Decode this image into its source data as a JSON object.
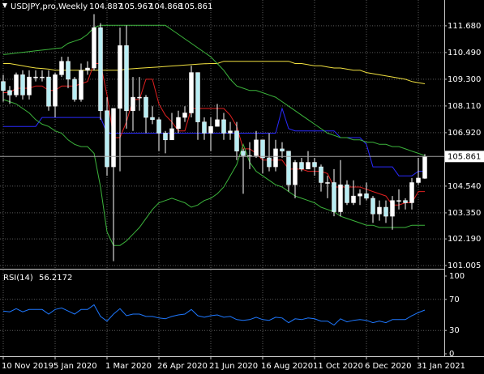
{
  "chart_data": {
    "type": "candlestick",
    "title": "USDJPY,pro,Weekly",
    "categories": [
      "10 Nov 2019",
      null,
      null,
      null,
      null,
      null,
      null,
      null,
      "5 Jan 2020",
      null,
      null,
      null,
      null,
      null,
      null,
      null,
      "1 Mar 2020",
      null,
      null,
      null,
      null,
      null,
      null,
      null,
      "26 Apr 2020",
      null,
      null,
      null,
      null,
      null,
      null,
      null,
      "21 Jun 2020",
      null,
      null,
      null,
      null,
      null,
      null,
      null,
      "16 Aug 2020",
      null,
      null,
      null,
      null,
      null,
      null,
      null,
      "11 Oct 2020",
      null,
      null,
      null,
      null,
      null,
      null,
      null,
      "6 Dec 2020",
      null,
      null,
      null,
      null,
      null,
      null,
      null,
      "31 Jan 2021",
      null
    ],
    "open": [
      109.2,
      108.8,
      108.6,
      109.5,
      108.6,
      109.4,
      109.4,
      109.4,
      108.1,
      109.5,
      110.1,
      109.3,
      108.4,
      109.7,
      109.8,
      111.6,
      107.9,
      105.4,
      108.0,
      110.8,
      107.9,
      108.5,
      108.5,
      107.6,
      107.5,
      106.9,
      106.6,
      107.1,
      107.6,
      107.8,
      109.6,
      107.4,
      106.9,
      107.2,
      107.5,
      106.9,
      107.0,
      106.1,
      105.9,
      105.9,
      106.6,
      105.8,
      105.4,
      106.2,
      106.1,
      104.6,
      105.6,
      105.3,
      105.6,
      105.4,
      104.7,
      104.7,
      103.4,
      104.6,
      103.8,
      104.1,
      104.2,
      104.0,
      103.3,
      103.6,
      103.2,
      103.9,
      103.9,
      103.8,
      104.7,
      104.887
    ],
    "high": [
      109.5,
      109.0,
      109.6,
      109.7,
      109.7,
      109.7,
      109.7,
      109.7,
      109.6,
      110.3,
      110.3,
      109.4,
      110.0,
      110.1,
      112.2,
      111.8,
      108.5,
      108.0,
      111.6,
      111.7,
      109.4,
      109.4,
      108.6,
      108.1,
      107.6,
      107.0,
      107.8,
      107.9,
      108.1,
      109.9,
      109.6,
      107.6,
      107.6,
      108.2,
      107.8,
      107.4,
      107.4,
      106.2,
      106.5,
      107.0,
      106.6,
      106.9,
      106.6,
      106.5,
      106.1,
      105.7,
      105.8,
      106.1,
      105.8,
      105.5,
      105.0,
      105.3,
      105.7,
      104.8,
      104.8,
      104.4,
      104.7,
      104.1,
      103.9,
      103.9,
      104.1,
      104.4,
      104.0,
      104.9,
      105.8,
      105.967
    ],
    "low": [
      108.3,
      108.2,
      108.5,
      108.4,
      108.4,
      109.2,
      109.2,
      107.9,
      107.6,
      109.4,
      108.9,
      108.3,
      108.3,
      109.5,
      109.7,
      107.5,
      105.0,
      101.2,
      105.2,
      107.1,
      107.0,
      107.9,
      106.9,
      107.3,
      106.1,
      106.0,
      106.6,
      106.9,
      107.4,
      107.6,
      106.6,
      106.6,
      106.1,
      107.2,
      106.6,
      106.6,
      105.7,
      104.2,
      105.3,
      105.8,
      105.1,
      105.2,
      105.2,
      105.8,
      104.3,
      104.0,
      105.2,
      105.3,
      105.0,
      104.3,
      104.0,
      103.2,
      103.2,
      103.7,
      103.7,
      103.7,
      103.9,
      102.9,
      103.0,
      102.9,
      102.6,
      103.5,
      103.5,
      103.5,
      104.6,
      104.868
    ],
    "close": [
      108.8,
      108.6,
      109.5,
      108.6,
      109.4,
      109.4,
      109.4,
      108.1,
      109.5,
      110.1,
      109.3,
      108.4,
      109.7,
      109.8,
      111.6,
      107.9,
      105.4,
      108.0,
      110.8,
      107.9,
      108.5,
      108.5,
      107.6,
      107.5,
      106.9,
      106.6,
      107.1,
      107.6,
      107.8,
      109.6,
      107.4,
      106.9,
      107.2,
      107.5,
      106.9,
      107.0,
      106.1,
      105.9,
      105.9,
      106.6,
      105.8,
      105.4,
      106.2,
      106.1,
      104.6,
      105.6,
      105.3,
      105.6,
      105.4,
      104.7,
      104.7,
      103.4,
      104.6,
      103.8,
      104.1,
      104.2,
      104.0,
      103.3,
      103.6,
      103.2,
      103.9,
      103.9,
      103.8,
      104.7,
      104.9,
      105.861
    ],
    "up_color": "#ffffff",
    "down_color": "#b8eef4",
    "wick_color": "#ffffff",
    "series": [
      {
        "color": "#f0e040",
        "values": [
          110.0,
          110.0,
          109.95,
          109.9,
          109.85,
          109.8,
          109.78,
          109.75,
          109.7,
          109.7,
          109.7,
          109.7,
          109.7,
          109.7,
          109.7,
          109.7,
          109.7,
          109.7,
          109.7,
          109.75,
          109.77,
          109.79,
          109.81,
          109.83,
          109.85,
          109.87,
          109.89,
          109.91,
          109.93,
          109.95,
          109.97,
          109.99,
          110.0,
          110.0,
          110.1,
          110.1,
          110.1,
          110.1,
          110.1,
          110.1,
          110.1,
          110.1,
          110.1,
          110.1,
          110.1,
          110.0,
          110.0,
          109.95,
          109.9,
          109.9,
          109.85,
          109.8,
          109.8,
          109.75,
          109.7,
          109.7,
          109.6,
          109.55,
          109.5,
          109.45,
          109.4,
          109.35,
          109.3,
          109.2,
          109.15,
          109.1
        ]
      },
      {
        "color": "#2a2aff",
        "values": [
          107.2,
          107.2,
          107.2,
          107.2,
          107.2,
          107.2,
          107.6,
          107.6,
          107.6,
          107.6,
          107.6,
          107.6,
          107.6,
          107.6,
          107.6,
          107.6,
          106.9,
          106.9,
          106.9,
          106.9,
          106.9,
          106.9,
          106.9,
          106.9,
          106.9,
          106.9,
          106.9,
          106.9,
          106.9,
          106.9,
          106.9,
          106.9,
          106.9,
          106.9,
          106.9,
          106.9,
          106.9,
          106.9,
          106.9,
          106.9,
          106.9,
          106.9,
          106.9,
          108.0,
          107.1,
          107.0,
          107.0,
          107.0,
          107.0,
          107.0,
          107.0,
          107.0,
          106.7,
          106.7,
          106.7,
          106.7,
          106.4,
          105.4,
          105.4,
          105.4,
          105.4,
          105.0,
          105.0,
          105.0,
          105.2,
          105.2
        ]
      },
      {
        "color": "#e02020",
        "values": [
          108.7,
          108.7,
          108.9,
          108.9,
          108.9,
          109.0,
          109.0,
          108.8,
          108.8,
          109.0,
          109.0,
          109.0,
          109.1,
          109.2,
          110.0,
          110.0,
          108.6,
          106.7,
          106.7,
          107.4,
          108.4,
          108.4,
          109.3,
          109.3,
          108.2,
          107.7,
          107.4,
          107.0,
          107.0,
          108.0,
          108.0,
          108.0,
          108.0,
          108.0,
          108.0,
          107.7,
          107.2,
          106.2,
          106.2,
          106.0,
          105.7,
          105.7,
          105.7,
          105.7,
          105.3,
          105.3,
          105.3,
          105.2,
          105.2,
          105.2,
          105.1,
          104.5,
          104.5,
          104.5,
          104.5,
          104.5,
          104.4,
          104.3,
          104.2,
          104.1,
          103.7,
          103.7,
          103.8,
          103.8,
          104.3,
          104.3
        ]
      },
      {
        "color": "#3cb43c",
        "values": [
          110.4,
          110.43,
          110.47,
          110.5,
          110.53,
          110.57,
          110.6,
          110.63,
          110.67,
          110.7,
          110.9,
          111.0,
          111.1,
          111.3,
          111.6,
          111.7,
          111.7,
          111.7,
          111.7,
          111.7,
          111.7,
          111.7,
          111.7,
          111.7,
          111.7,
          111.7,
          111.5,
          111.3,
          111.1,
          110.9,
          110.7,
          110.5,
          110.3,
          110.0,
          109.7,
          109.3,
          109.0,
          108.9,
          108.8,
          108.8,
          108.7,
          108.6,
          108.5,
          108.3,
          108.1,
          107.9,
          107.7,
          107.5,
          107.3,
          107.1,
          106.9,
          106.8,
          106.7,
          106.7,
          106.6,
          106.6,
          106.5,
          106.5,
          106.4,
          106.4,
          106.3,
          106.3,
          106.2,
          106.1,
          106.0,
          105.9
        ]
      },
      {
        "color": "#3cb43c",
        "values": [
          108.4,
          108.3,
          108.2,
          108.0,
          107.8,
          107.5,
          107.3,
          107.2,
          107.0,
          106.9,
          106.6,
          106.4,
          106.3,
          106.3,
          106.0,
          104.5,
          102.5,
          101.9,
          101.9,
          102.1,
          102.4,
          102.7,
          103.1,
          103.5,
          103.8,
          103.9,
          104.0,
          103.9,
          103.8,
          103.6,
          103.7,
          103.9,
          104.0,
          104.2,
          104.5,
          105.0,
          105.5,
          106.4,
          105.6,
          105.2,
          105.0,
          104.8,
          104.6,
          104.5,
          104.3,
          104.1,
          104.0,
          103.9,
          103.8,
          103.6,
          103.5,
          103.4,
          103.2,
          103.1,
          103.0,
          102.9,
          102.8,
          102.8,
          102.7,
          102.7,
          102.7,
          102.7,
          102.7,
          102.8,
          102.8,
          102.8
        ]
      }
    ],
    "ylim": [
      100.86,
      112.83
    ],
    "yticks": [
      {
        "value": 111.68,
        "label": "111.680"
      },
      {
        "value": 110.49,
        "label": "110.490"
      },
      {
        "value": 109.3,
        "label": "109.300"
      },
      {
        "value": 108.11,
        "label": "108.110"
      },
      {
        "value": 106.92,
        "label": "106.920"
      },
      {
        "value": 104.54,
        "label": "104.540"
      },
      {
        "value": 103.35,
        "label": "103.350"
      },
      {
        "value": 102.19,
        "label": "102.190"
      },
      101.005
    ],
    "grid": true,
    "rsi": {
      "name": "RSI(14)",
      "color": "#1e78ff",
      "values": [
        55,
        54,
        58,
        54,
        57,
        57,
        57,
        51,
        57,
        59,
        55,
        51,
        57,
        57,
        63,
        48,
        42,
        51,
        58,
        49,
        51,
        51,
        48,
        48,
        46,
        45,
        48,
        50,
        51,
        57,
        49,
        47,
        49,
        50,
        47,
        48,
        44,
        43,
        44,
        47,
        44,
        43,
        47,
        46,
        40,
        45,
        44,
        46,
        45,
        42,
        42,
        37,
        45,
        41,
        43,
        44,
        43,
        40,
        42,
        40,
        44,
        44,
        44,
        49,
        53,
        56.2172
      ],
      "ylim": [
        0,
        100
      ],
      "yticks": [
        100,
        70,
        30,
        0
      ]
    }
  }
}
